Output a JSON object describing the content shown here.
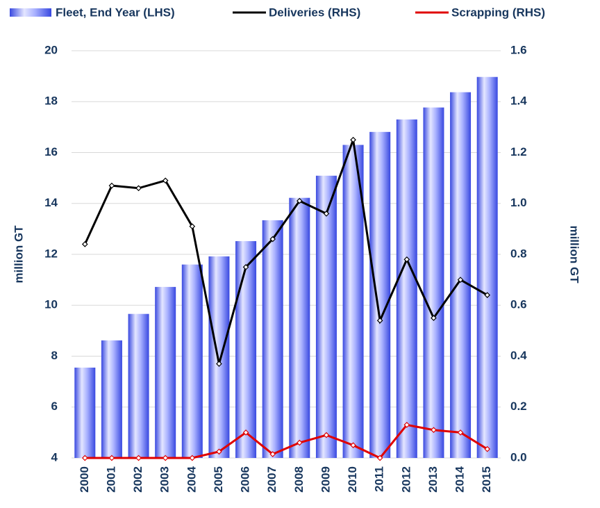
{
  "chart_data": {
    "type": "bar",
    "categories": [
      "2000",
      "2001",
      "2002",
      "2003",
      "2004",
      "2005",
      "2006",
      "2007",
      "2008",
      "2009",
      "2010",
      "2011",
      "2012",
      "2013",
      "2014",
      "2015"
    ],
    "series": [
      {
        "name": "Fleet, End Year (LHS)",
        "type": "bar",
        "axis": "y",
        "color": "#5060f0",
        "values": [
          7.55,
          8.62,
          9.66,
          10.72,
          11.6,
          11.92,
          12.52,
          13.34,
          14.22,
          15.09,
          16.3,
          16.81,
          17.3,
          17.77,
          18.37,
          18.97
        ]
      },
      {
        "name": "Deliveries (RHS)",
        "type": "line",
        "axis": "y2",
        "color": "#000000",
        "values": [
          0.84,
          1.07,
          1.06,
          1.09,
          0.91,
          0.37,
          0.75,
          0.86,
          1.01,
          0.96,
          1.25,
          0.54,
          0.78,
          0.55,
          0.7,
          0.64
        ]
      },
      {
        "name": "Scrapping (RHS)",
        "type": "line",
        "axis": "y2",
        "color": "#e00000",
        "values": [
          0,
          0,
          0,
          0,
          0,
          0.025,
          0.1,
          0.015,
          0.06,
          0.09,
          0.05,
          0,
          0.13,
          0.11,
          0.1,
          0.035
        ]
      }
    ],
    "ylabel": "million GT",
    "y2label": "million GT",
    "ylim": [
      4,
      20
    ],
    "yticks": [
      4,
      6,
      8,
      10,
      12,
      14,
      16,
      18,
      20
    ],
    "y2lim": [
      0,
      1.6
    ],
    "y2ticks": [
      {
        "value": 0,
        "label": "0.0"
      },
      0.2,
      0.4,
      0.6,
      0.8,
      {
        "value": 1,
        "label": "1.0"
      },
      1.2,
      1.4,
      1.6
    ],
    "grid": true,
    "legend": "top"
  }
}
